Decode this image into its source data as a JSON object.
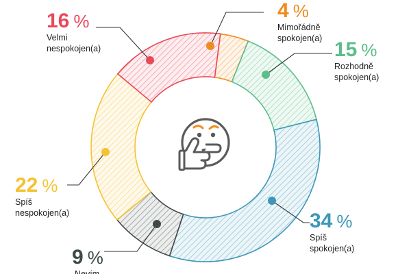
{
  "chart_data": {
    "type": "pie",
    "variant": "donut",
    "title": "",
    "percent_symbol": "%",
    "center_icon": "thinking-face-icon",
    "slices": [
      {
        "key": "mimoradne",
        "value": 4,
        "label_lines": [
          "Mimořádně",
          "spokojen(a)"
        ],
        "color": "#F08C1E"
      },
      {
        "key": "rozhodne",
        "value": 15,
        "label_lines": [
          "Rozhodně",
          "spokojen(a)"
        ],
        "color": "#5BBE8A"
      },
      {
        "key": "spis-spok",
        "value": 34,
        "label_lines": [
          "Spíš",
          "spokojen(a)"
        ],
        "color": "#3E97B8"
      },
      {
        "key": "nevim",
        "value": 9,
        "label_lines": [
          "Nevím"
        ],
        "color": "#3F4A48"
      },
      {
        "key": "spis-nesp",
        "value": 22,
        "label_lines": [
          "Spíš",
          "nespokojen(a)"
        ],
        "color": "#F5C232"
      },
      {
        "key": "velmi",
        "value": 16,
        "label_lines": [
          "Velmi",
          "nespokojen(a)"
        ],
        "color": "#E8495B"
      }
    ]
  }
}
